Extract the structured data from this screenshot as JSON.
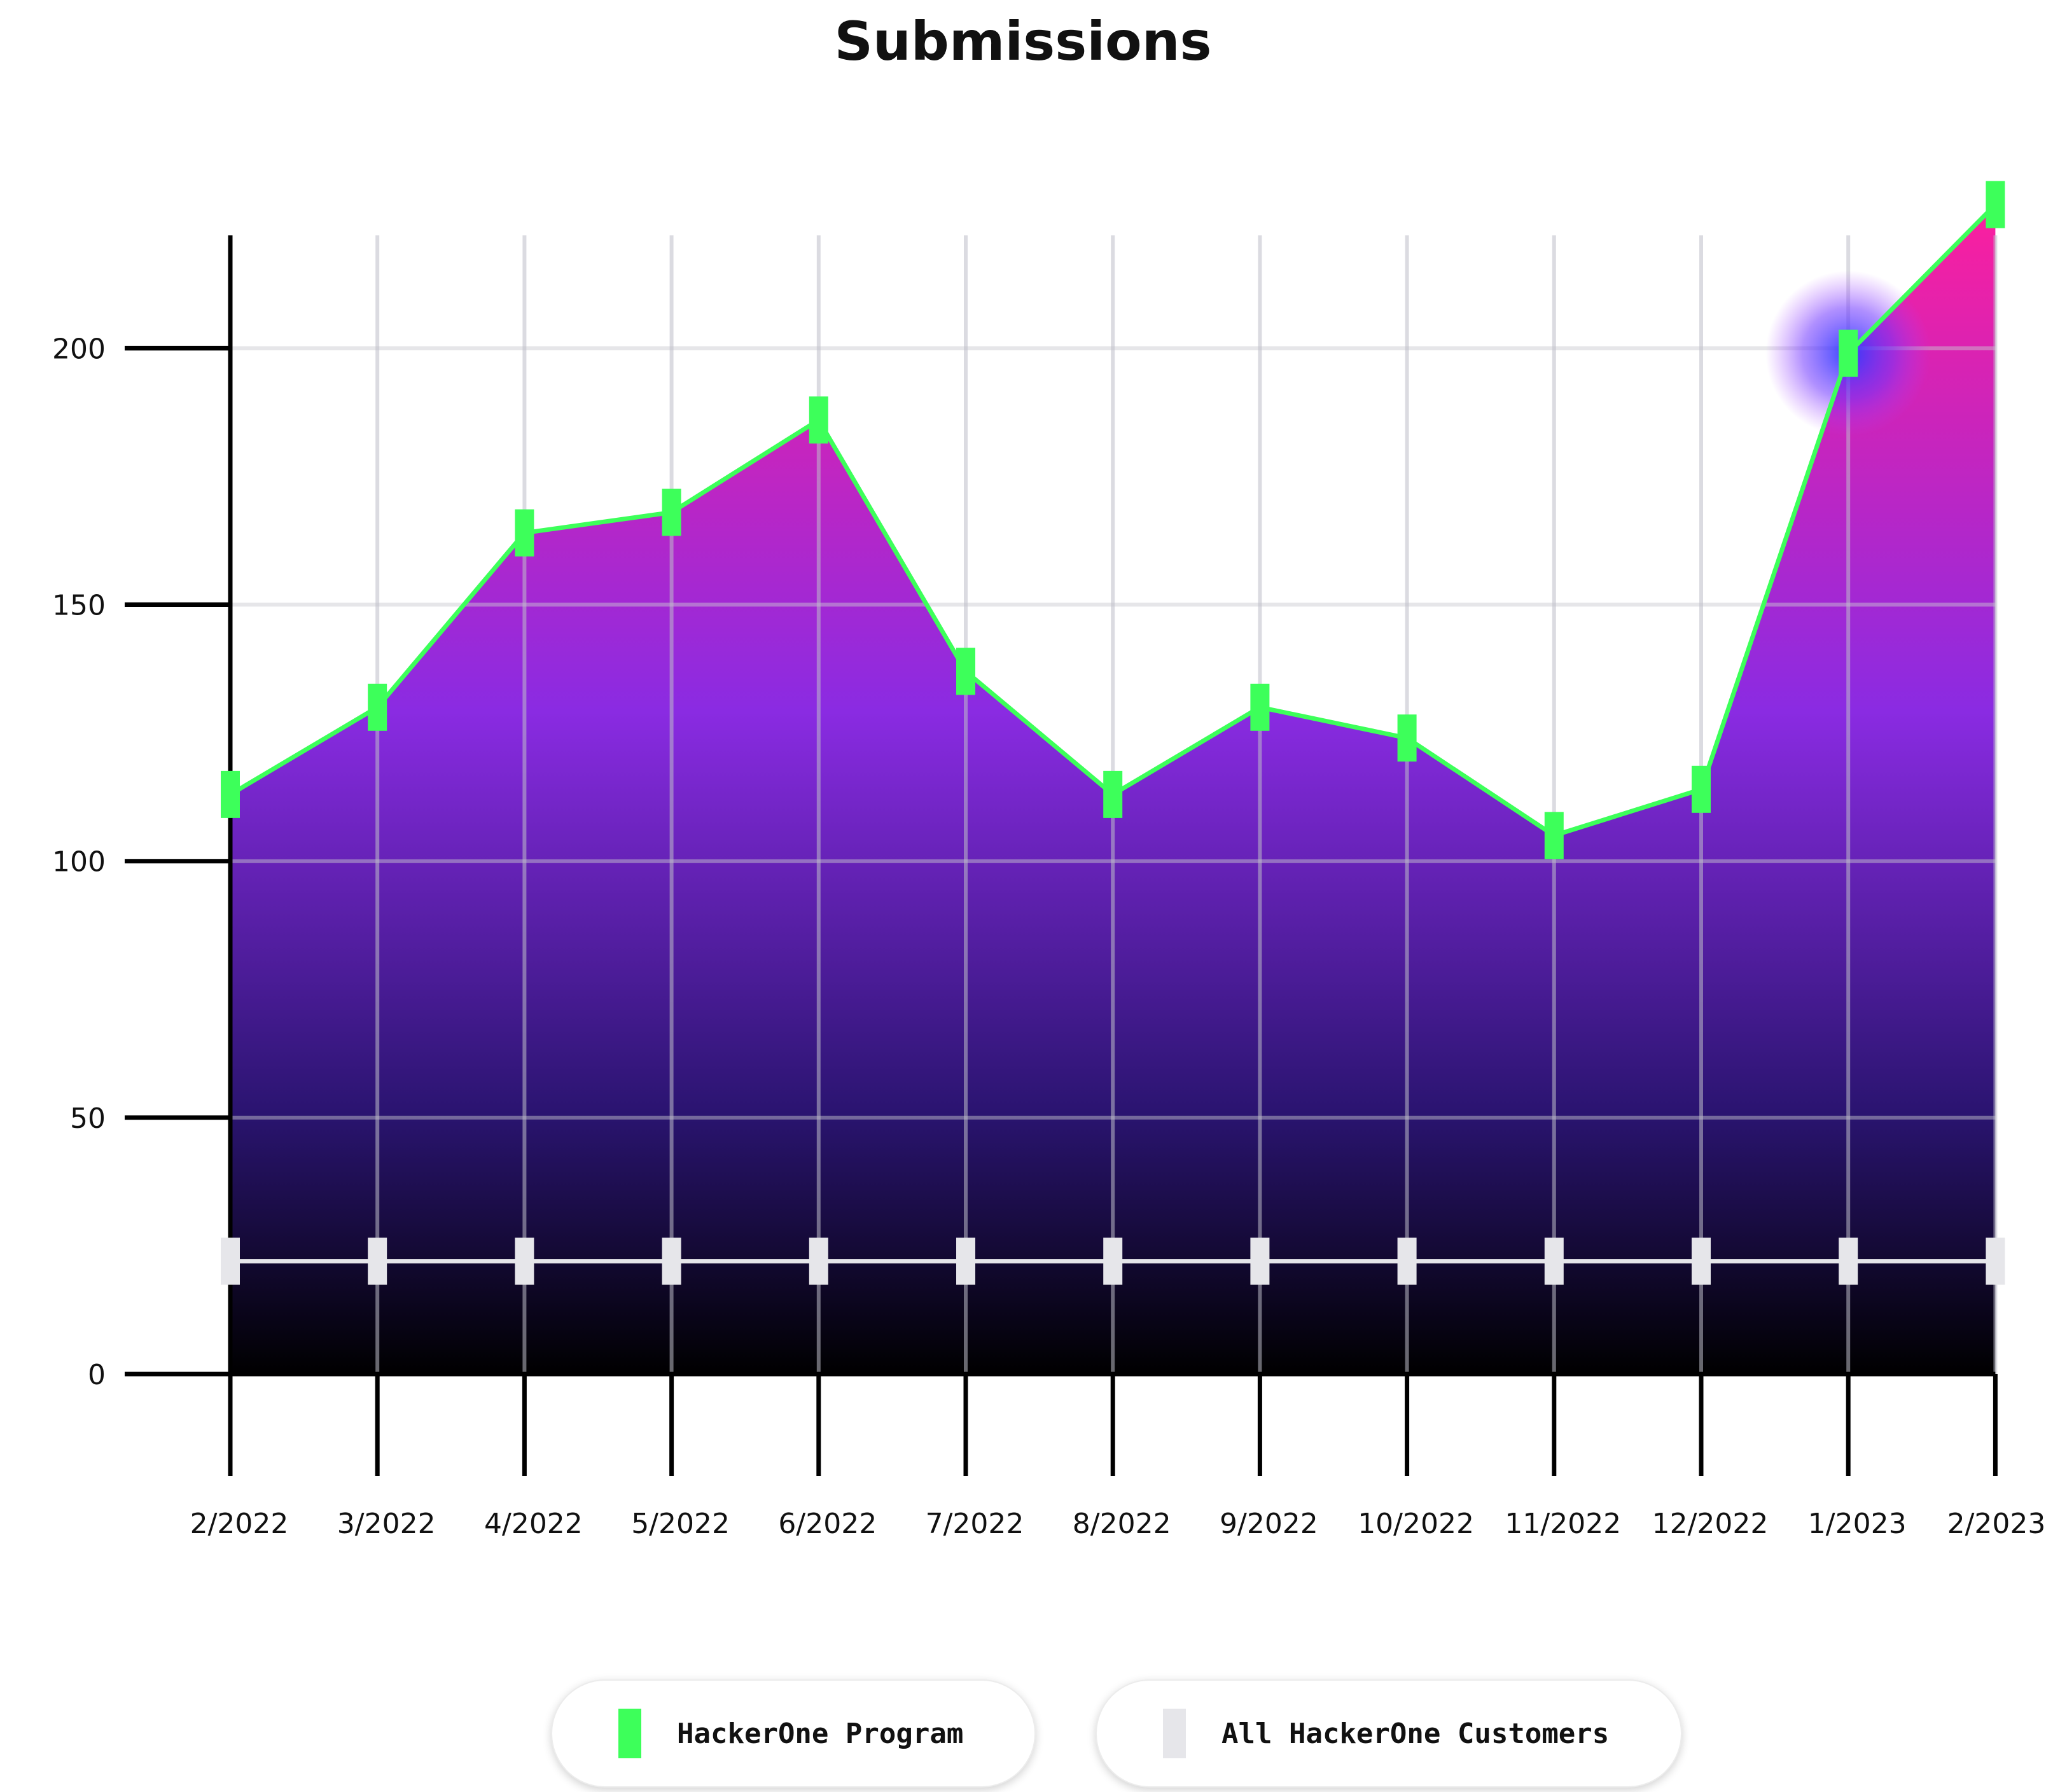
{
  "chart_data": {
    "type": "area",
    "title": "Submissions",
    "categories": [
      "2/2022",
      "3/2022",
      "4/2022",
      "5/2022",
      "6/2022",
      "7/2022",
      "8/2022",
      "9/2022",
      "10/2022",
      "11/2022",
      "12/2022",
      "1/2023",
      "2/2023"
    ],
    "y_ticks": [
      "0",
      "50",
      "100",
      "150",
      "200"
    ],
    "ylim": [
      0,
      222
    ],
    "grid": true,
    "legend_position": "bottom-center",
    "highlight_index": 11,
    "series": [
      {
        "name": "HackerOne Program",
        "color": "#3dff5a",
        "values": [
          113,
          130,
          164,
          168,
          186,
          137,
          113,
          130,
          124,
          105,
          114,
          199,
          228
        ]
      },
      {
        "name": "All HackerOne Customers",
        "color": "#e6e6ea",
        "values": [
          22,
          22,
          22,
          22,
          22,
          22,
          22,
          22,
          22,
          22,
          22,
          22,
          22
        ]
      }
    ],
    "fill_gradient": [
      "#ff1f9c",
      "#8a2be2",
      "#2a1470",
      "#000000"
    ]
  }
}
